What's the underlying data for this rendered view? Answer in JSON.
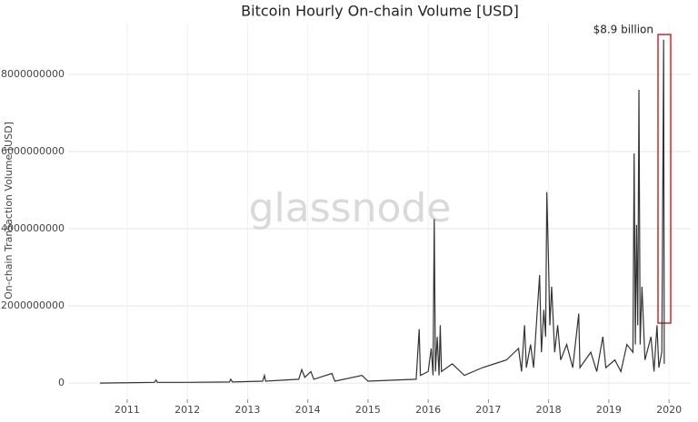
{
  "chart_data": {
    "type": "line",
    "title": "Bitcoin Hourly On-chain Volume [USD]",
    "y_label": "On-chain Transaction Volume [USD]",
    "annotation": "$8.9 billion",
    "watermark": "glassnode",
    "grid": true,
    "xlim": [
      2010.02,
      2020.36
    ],
    "xticks": [
      2011,
      2012,
      2013,
      2014,
      2015,
      2016,
      2017,
      2018,
      2019,
      2020
    ],
    "ylim": [
      -420000000,
      9340000000
    ],
    "yticks": [
      0,
      2000000000,
      4000000000,
      6000000000,
      8000000000
    ],
    "series": [
      {
        "color": "#333333",
        "x": [
          2010.55,
          2011.0,
          2011.45,
          2011.48,
          2011.5,
          2012.0,
          2012.7,
          2012.72,
          2012.75,
          2013.25,
          2013.28,
          2013.3,
          2013.85,
          2013.9,
          2013.95,
          2014.05,
          2014.1,
          2014.4,
          2014.45,
          2014.9,
          2015.0,
          2015.8,
          2015.85,
          2015.87,
          2016.0,
          2016.05,
          2016.08,
          2016.1,
          2016.12,
          2016.15,
          2016.18,
          2016.2,
          2016.22,
          2016.4,
          2016.6,
          2016.9,
          2017.1,
          2017.3,
          2017.5,
          2017.55,
          2017.6,
          2017.63,
          2017.7,
          2017.75,
          2017.85,
          2017.88,
          2017.92,
          2017.95,
          2017.97,
          2018.0,
          2018.02,
          2018.05,
          2018.1,
          2018.15,
          2018.2,
          2018.3,
          2018.4,
          2018.5,
          2018.52,
          2018.7,
          2018.8,
          2018.9,
          2018.95,
          2019.1,
          2019.2,
          2019.3,
          2019.4,
          2019.42,
          2019.44,
          2019.46,
          2019.48,
          2019.5,
          2019.52,
          2019.55,
          2019.6,
          2019.7,
          2019.75,
          2019.8,
          2019.83,
          2019.88,
          2019.91,
          2019.92
        ],
        "values": [
          0,
          10000000,
          20000000,
          80000000,
          20000000,
          20000000,
          30000000,
          100000000,
          30000000,
          50000000,
          200000000,
          50000000,
          100000000,
          350000000,
          150000000,
          300000000,
          100000000,
          250000000,
          50000000,
          200000000,
          50000000,
          100000000,
          1400000000,
          200000000,
          300000000,
          900000000,
          200000000,
          4250000000,
          300000000,
          1200000000,
          200000000,
          1500000000,
          300000000,
          500000000,
          200000000,
          400000000,
          500000000,
          600000000,
          900000000,
          300000000,
          1500000000,
          400000000,
          1000000000,
          400000000,
          2800000000,
          800000000,
          1900000000,
          1200000000,
          4950000000,
          3000000000,
          1500000000,
          2500000000,
          800000000,
          1500000000,
          600000000,
          1000000000,
          400000000,
          1800000000,
          400000000,
          800000000,
          300000000,
          1200000000,
          400000000,
          600000000,
          300000000,
          1000000000,
          800000000,
          5950000000,
          1000000000,
          4100000000,
          1500000000,
          7600000000,
          1000000000,
          2500000000,
          600000000,
          1200000000,
          300000000,
          1500000000,
          400000000,
          800000000,
          8900000000,
          500000000
        ]
      }
    ]
  }
}
